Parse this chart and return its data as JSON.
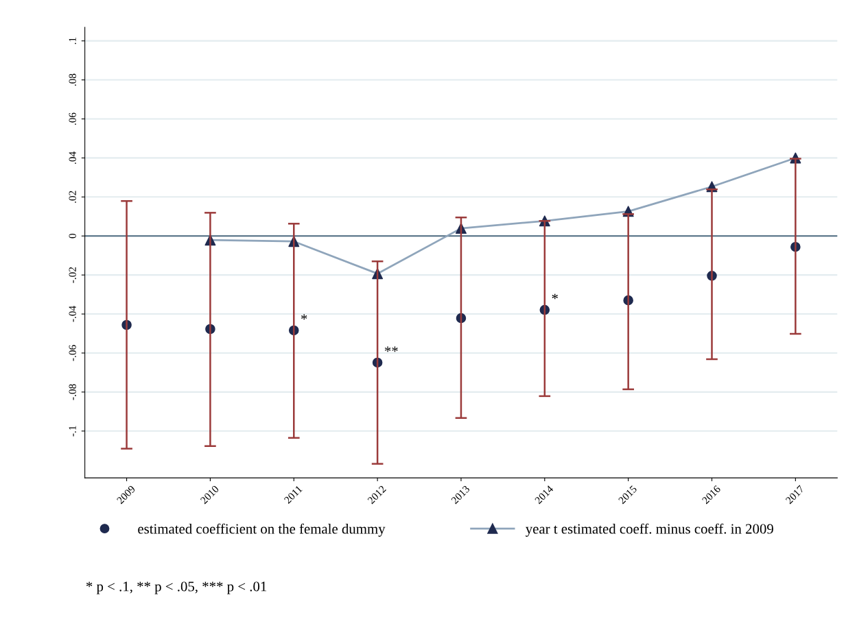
{
  "chart_data": {
    "type": "scatter",
    "categories": [
      "2009",
      "2010",
      "2011",
      "2012",
      "2013",
      "2014",
      "2015",
      "2016",
      "2017"
    ],
    "series": [
      {
        "name": "estimated coefficient on the female dummy",
        "marker": "circle",
        "color": "#1f2a4f",
        "values": [
          -0.0456,
          -0.0477,
          -0.0484,
          -0.0649,
          -0.0421,
          -0.0379,
          -0.033,
          -0.0204,
          -0.0056
        ],
        "errors": [
          [
            -0.109,
            0.0179
          ],
          [
            -0.1077,
            0.0119
          ],
          [
            -0.1035,
            0.0063
          ],
          [
            -0.1168,
            -0.013
          ],
          [
            -0.0933,
            0.0095
          ],
          [
            -0.0821,
            0.0077
          ],
          [
            -0.0786,
            0.0112
          ],
          [
            -0.0632,
            0.0239
          ],
          [
            -0.0502,
            0.0396
          ]
        ]
      },
      {
        "name": "year t estimated coeff. minus coeff. in 2009",
        "type": "line",
        "marker": "triangle",
        "color": "#8fa5bb",
        "values": [
          null,
          -0.0021,
          -0.0028,
          -0.0193,
          0.0039,
          0.0077,
          0.0126,
          0.0253,
          0.04
        ]
      }
    ],
    "ylim": [
      -0.124,
      0.107
    ],
    "yticks": [
      {
        "value": 0.1,
        "label": ".1"
      },
      {
        "value": 0.08,
        "label": ".08"
      },
      {
        "value": 0.06,
        "label": ".06"
      },
      {
        "value": 0.04,
        "label": ".04"
      },
      {
        "value": 0.02,
        "label": ".02"
      },
      0,
      {
        "value": -0.02,
        "label": "-.02"
      },
      {
        "value": -0.04,
        "label": "-.04"
      },
      {
        "value": -0.06,
        "label": "-.06"
      },
      {
        "value": -0.08,
        "label": "-.08"
      },
      {
        "value": -0.1,
        "label": "-.1"
      }
    ],
    "grid": "y",
    "ref_lines": [
      {
        "axis": "y",
        "value": 0,
        "color": "#4f6b80"
      }
    ],
    "legend": "bottom",
    "annotations": [
      {
        "text": "*",
        "x": "2011",
        "y": -0.0484
      },
      {
        "text": "**",
        "x": "2012",
        "y": -0.0649
      },
      {
        "text": "*",
        "x": "2014",
        "y": -0.0379
      },
      "* p < .1, ** p < .05, *** p < .01"
    ]
  }
}
